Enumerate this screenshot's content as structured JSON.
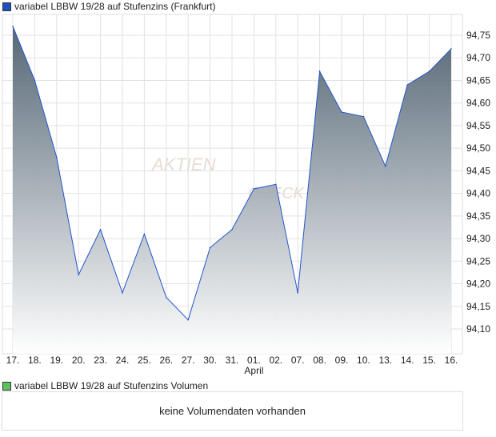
{
  "legend_price": "variabel LBBW 19/28 auf Stufenzins (Frankfurt)",
  "legend_volume": "variabel LBBW 19/28 auf Stufenzins Volumen",
  "no_volume": "keine Volumendaten vorhanden",
  "watermark": "AKTIEN CHECK",
  "colors": {
    "price": "#1f4fbf",
    "volume": "#5cc35c",
    "line": "#2255cc",
    "fill_top": "#4d5f6e",
    "fill_bottom": "#ffffff"
  },
  "chart_data": {
    "type": "area",
    "title": "variabel LBBW 19/28 auf Stufenzins (Frankfurt)",
    "categories": [
      "17.",
      "18.",
      "19.",
      "20.",
      "23.",
      "24.",
      "25.",
      "26.",
      "27.",
      "30.",
      "31.",
      "01.",
      "02.",
      "07.",
      "08.",
      "09.",
      "10.",
      "13.",
      "14.",
      "15.",
      "16."
    ],
    "month_label": "April",
    "month_label_index": 11,
    "values": [
      94.77,
      94.65,
      94.48,
      94.22,
      94.32,
      94.18,
      94.31,
      94.17,
      94.12,
      94.28,
      94.32,
      94.41,
      94.42,
      94.18,
      94.67,
      94.58,
      94.57,
      94.46,
      94.64,
      94.67,
      94.72
    ],
    "yticks": [
      "94,10",
      "94,15",
      "94,20",
      "94,25",
      "94,30",
      "94,35",
      "94,40",
      "94,45",
      "94,50",
      "94,55",
      "94,60",
      "94,65",
      "94,70",
      "94,75"
    ],
    "ylim": [
      94.06,
      94.79
    ],
    "grid": true
  }
}
